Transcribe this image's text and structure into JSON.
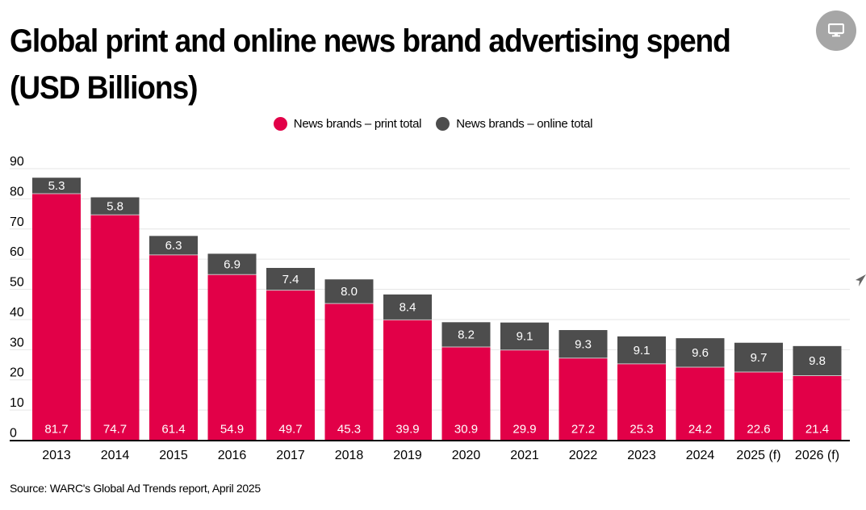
{
  "header": {
    "title": "Global print and online news brand advertising spend (USD Billions)",
    "screen_button_icon": "monitor-icon"
  },
  "source": "Source: WARC's Global Ad Trends report, April 2025",
  "colors": {
    "print": "#e20048",
    "online": "#4d4d4d",
    "grid": "#e6e6e6",
    "axis": "#000000"
  },
  "chart_data": {
    "type": "bar",
    "stacked": true,
    "title": "Global print and online news brand advertising spend (USD Billions)",
    "xlabel": "",
    "ylabel": "",
    "ylim": [
      0,
      90
    ],
    "yticks": [
      0,
      10,
      20,
      30,
      40,
      50,
      60,
      70,
      80,
      90
    ],
    "grid": true,
    "legend_position": "top-center",
    "categories": [
      "2013",
      "2014",
      "2015",
      "2016",
      "2017",
      "2018",
      "2019",
      "2020",
      "2021",
      "2022",
      "2023",
      "2024",
      "2025 (f)",
      "2026 (f)"
    ],
    "series": [
      {
        "name": "News brands – print total",
        "color": "#e20048",
        "values": [
          81.7,
          74.7,
          61.4,
          54.9,
          49.7,
          45.3,
          39.9,
          30.9,
          29.9,
          27.2,
          25.3,
          24.2,
          22.6,
          21.4
        ]
      },
      {
        "name": "News brands – online total",
        "color": "#4d4d4d",
        "values": [
          5.3,
          5.8,
          6.3,
          6.9,
          7.4,
          8.0,
          8.4,
          8.2,
          9.1,
          9.3,
          9.1,
          9.6,
          9.7,
          9.8
        ]
      }
    ]
  }
}
